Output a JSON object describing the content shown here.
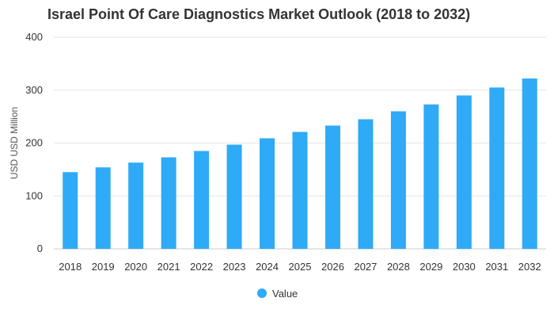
{
  "chart_data": {
    "type": "bar",
    "title": "Israel Point Of Care Diagnostics Market Outlook (2018 to 2032)",
    "xlabel": "",
    "ylabel": "USD USD Million",
    "ylim": [
      0,
      400
    ],
    "yticks": [
      0,
      100,
      200,
      300,
      400
    ],
    "categories": [
      "2018",
      "2019",
      "2020",
      "2021",
      "2022",
      "2023",
      "2024",
      "2025",
      "2026",
      "2027",
      "2028",
      "2029",
      "2030",
      "2031",
      "2032"
    ],
    "series": [
      {
        "name": "Value",
        "color": "#2eaaf7",
        "values": [
          145,
          154,
          163,
          173,
          185,
          197,
          209,
          221,
          233,
          245,
          260,
          273,
          290,
          305,
          322
        ]
      }
    ],
    "grid": true,
    "legend_position": "bottom-center"
  }
}
